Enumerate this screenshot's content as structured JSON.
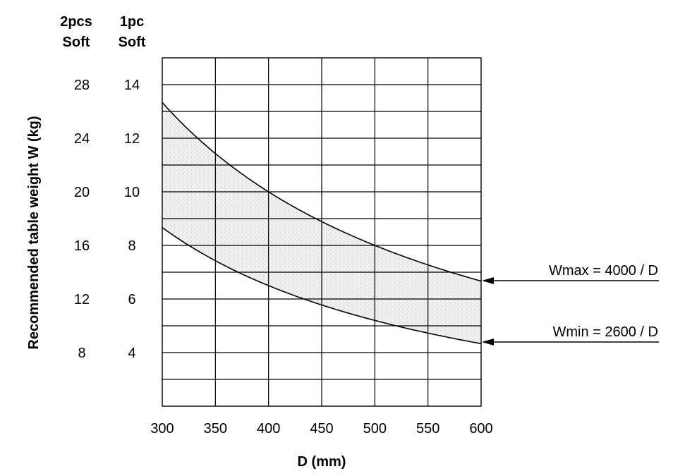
{
  "chart_data": {
    "type": "area",
    "xlabel": "D (mm)",
    "ylabel": "Recommended table weight W (kg)",
    "xlim": [
      300,
      600
    ],
    "ylim_1pc": [
      2,
      15
    ],
    "ylim_2pcs": [
      4,
      30
    ],
    "x_ticks": [
      "300",
      "350",
      "400",
      "450",
      "500",
      "550",
      "600"
    ],
    "x_tick_values": [
      300,
      350,
      400,
      450,
      500,
      550,
      600
    ],
    "y_scales": [
      {
        "header_line1": "2pcs",
        "header_line2": "Soft",
        "ticks": [
          "28",
          "24",
          "20",
          "16",
          "12",
          "8"
        ],
        "values": [
          28,
          24,
          20,
          16,
          12,
          8
        ]
      },
      {
        "header_line1": "1pc",
        "header_line2": "Soft",
        "ticks": [
          "14",
          "12",
          "10",
          "8",
          "6",
          "4"
        ],
        "values": [
          14,
          12,
          10,
          8,
          6,
          4
        ]
      }
    ],
    "grid": true,
    "series": [
      {
        "name": "Wmax = 4000 / D",
        "formula_k": 4000,
        "x": [
          300,
          350,
          400,
          450,
          500,
          550,
          600
        ],
        "y": [
          13.33,
          11.43,
          10.0,
          8.89,
          8.0,
          7.27,
          6.67
        ]
      },
      {
        "name": "Wmin = 2600 / D",
        "formula_k": 2600,
        "x": [
          300,
          350,
          400,
          450,
          500,
          550,
          600
        ],
        "y": [
          8.67,
          7.43,
          6.5,
          5.78,
          5.2,
          4.73,
          4.33
        ]
      }
    ],
    "shaded_band": "between Wmin and Wmax"
  }
}
